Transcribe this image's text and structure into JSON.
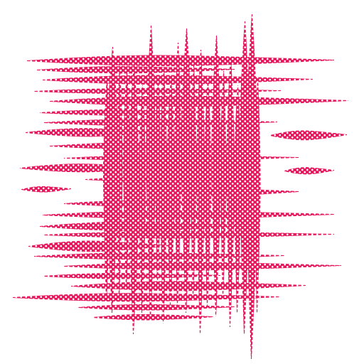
{
  "artwork": {
    "subject": "crosshatched-grid-texture",
    "style": "halftone-dot-pattern",
    "ink_color": "#e5185d",
    "paper_color": "#ffffff"
  }
}
